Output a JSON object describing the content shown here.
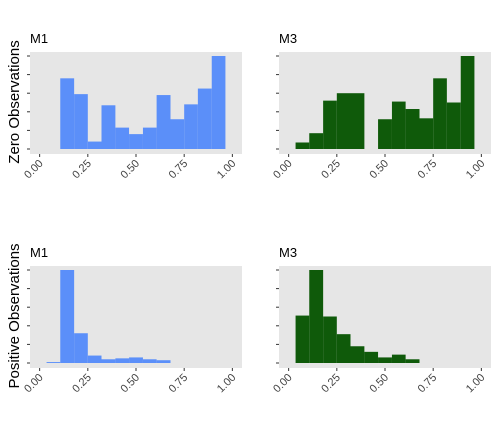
{
  "chart_data": {
    "type": "bar",
    "row_labels": [
      "Zero Observations",
      "Positive Observations"
    ],
    "x_ticks": [
      "0.00",
      "0.25",
      "0.50",
      "0.75",
      "1.00"
    ],
    "xlim": [
      0,
      1
    ],
    "bin_width": 0.0714,
    "colors": {
      "M1": "#5b8ff9",
      "M3": "#0f5a0a",
      "panel_bg": "#e6e6e6"
    },
    "panels": [
      {
        "row": 0,
        "title": "M1",
        "color": "#5b8ff9",
        "ylim": [
          0,
          1.0
        ],
        "bins": [
          {
            "x0": 0.107,
            "x1": 0.179,
            "height": 0.76
          },
          {
            "x0": 0.179,
            "x1": 0.25,
            "height": 0.59
          },
          {
            "x0": 0.25,
            "x1": 0.321,
            "height": 0.08
          },
          {
            "x0": 0.321,
            "x1": 0.393,
            "height": 0.47
          },
          {
            "x0": 0.393,
            "x1": 0.464,
            "height": 0.23
          },
          {
            "x0": 0.464,
            "x1": 0.536,
            "height": 0.16
          },
          {
            "x0": 0.536,
            "x1": 0.607,
            "height": 0.23
          },
          {
            "x0": 0.607,
            "x1": 0.679,
            "height": 0.58
          },
          {
            "x0": 0.679,
            "x1": 0.75,
            "height": 0.32
          },
          {
            "x0": 0.75,
            "x1": 0.821,
            "height": 0.48
          },
          {
            "x0": 0.821,
            "x1": 0.893,
            "height": 0.65
          },
          {
            "x0": 0.893,
            "x1": 0.964,
            "height": 1.0
          }
        ]
      },
      {
        "row": 0,
        "title": "M3",
        "color": "#0f5a0a",
        "ylim": [
          0,
          1.0
        ],
        "bins": [
          {
            "x0": 0.036,
            "x1": 0.107,
            "height": 0.07
          },
          {
            "x0": 0.107,
            "x1": 0.179,
            "height": 0.17
          },
          {
            "x0": 0.179,
            "x1": 0.25,
            "height": 0.52
          },
          {
            "x0": 0.25,
            "x1": 0.321,
            "height": 0.6
          },
          {
            "x0": 0.321,
            "x1": 0.393,
            "height": 0.6
          },
          {
            "x0": 0.464,
            "x1": 0.536,
            "height": 0.32
          },
          {
            "x0": 0.536,
            "x1": 0.607,
            "height": 0.51
          },
          {
            "x0": 0.607,
            "x1": 0.679,
            "height": 0.43
          },
          {
            "x0": 0.679,
            "x1": 0.75,
            "height": 0.33
          },
          {
            "x0": 0.75,
            "x1": 0.821,
            "height": 0.76
          },
          {
            "x0": 0.821,
            "x1": 0.893,
            "height": 0.5
          },
          {
            "x0": 0.893,
            "x1": 0.964,
            "height": 1.0
          }
        ]
      },
      {
        "row": 1,
        "title": "M1",
        "color": "#5b8ff9",
        "ylim": [
          0,
          1.0
        ],
        "bins": [
          {
            "x0": 0.036,
            "x1": 0.107,
            "height": 0.01
          },
          {
            "x0": 0.107,
            "x1": 0.179,
            "height": 1.0
          },
          {
            "x0": 0.179,
            "x1": 0.25,
            "height": 0.32
          },
          {
            "x0": 0.25,
            "x1": 0.321,
            "height": 0.08
          },
          {
            "x0": 0.321,
            "x1": 0.393,
            "height": 0.04
          },
          {
            "x0": 0.393,
            "x1": 0.464,
            "height": 0.05
          },
          {
            "x0": 0.464,
            "x1": 0.536,
            "height": 0.06
          },
          {
            "x0": 0.536,
            "x1": 0.607,
            "height": 0.04
          },
          {
            "x0": 0.607,
            "x1": 0.679,
            "height": 0.03
          }
        ]
      },
      {
        "row": 1,
        "title": "M3",
        "color": "#0f5a0a",
        "ylim": [
          0,
          1.0
        ],
        "bins": [
          {
            "x0": 0.036,
            "x1": 0.107,
            "height": 0.51
          },
          {
            "x0": 0.107,
            "x1": 0.179,
            "height": 1.0
          },
          {
            "x0": 0.179,
            "x1": 0.25,
            "height": 0.5
          },
          {
            "x0": 0.25,
            "x1": 0.321,
            "height": 0.31
          },
          {
            "x0": 0.321,
            "x1": 0.393,
            "height": 0.18
          },
          {
            "x0": 0.393,
            "x1": 0.464,
            "height": 0.12
          },
          {
            "x0": 0.464,
            "x1": 0.536,
            "height": 0.06
          },
          {
            "x0": 0.536,
            "x1": 0.607,
            "height": 0.09
          },
          {
            "x0": 0.607,
            "x1": 0.679,
            "height": 0.04
          }
        ]
      }
    ]
  }
}
